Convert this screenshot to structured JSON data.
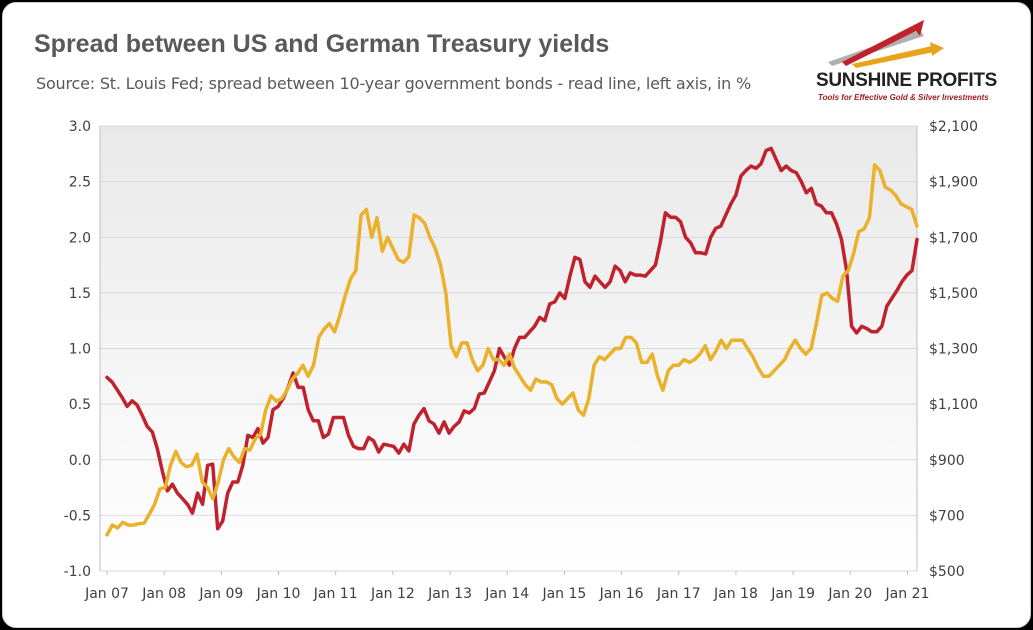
{
  "header": {
    "title": "Spread between US and German Treasury yields",
    "subtitle": "Source: St. Louis Fed; spread between 10-year government bonds - read line, left axis, in %"
  },
  "logo": {
    "name": "SUNSHINE PROFITS",
    "tagline": "Tools for Effective Gold & Silver Investments",
    "colors": {
      "red": "#c0222d",
      "gold": "#e8a419",
      "gray": "#b0b0b0"
    }
  },
  "chart_data": {
    "type": "line",
    "x_start": "Jan 07",
    "x_tick_labels": [
      "Jan 07",
      "Jan 08",
      "Jan 09",
      "Jan 10",
      "Jan 11",
      "Jan 12",
      "Jan 13",
      "Jan 14",
      "Jan 15",
      "Jan 16",
      "Jan 17",
      "Jan 18",
      "Jan 19",
      "Jan 20",
      "Jan 21"
    ],
    "y_left": {
      "ylim": [
        -1.0,
        3.0
      ],
      "ticks": [
        "-1.0",
        "-0.5",
        "0.0",
        "0.5",
        "1.0",
        "1.5",
        "2.0",
        "2.5",
        "3.0"
      ]
    },
    "y_right": {
      "ylim": [
        500,
        2100
      ],
      "ticks": [
        "$500",
        "$700",
        "$900",
        "$1,100",
        "$1,300",
        "$1,500",
        "$1,700",
        "$1,900",
        "$2,100"
      ]
    },
    "grid": true,
    "colors": {
      "spread": "#c0222d",
      "gold": "#eab12a",
      "grid": "#d9d9d9",
      "plot_bg_top": "#e9e9e9",
      "plot_bg_bottom": "#ffffff"
    },
    "series": [
      {
        "axis": "left",
        "values": [
          0.74,
          0.7,
          0.63,
          0.56,
          0.48,
          0.53,
          0.49,
          0.4,
          0.3,
          0.25,
          0.1,
          -0.1,
          -0.28,
          -0.22,
          -0.3,
          -0.35,
          -0.4,
          -0.48,
          -0.3,
          -0.4,
          -0.05,
          -0.04,
          -0.62,
          -0.55,
          -0.3,
          -0.2,
          -0.2,
          -0.05,
          0.22,
          0.2,
          0.28,
          0.15,
          0.2,
          0.45,
          0.48,
          0.55,
          0.65,
          0.78,
          0.65,
          0.65,
          0.45,
          0.35,
          0.35,
          0.2,
          0.23,
          0.38,
          0.38,
          0.38,
          0.22,
          0.12,
          0.1,
          0.1,
          0.2,
          0.17,
          0.07,
          0.14,
          0.13,
          0.12,
          0.06,
          0.14,
          0.08,
          0.32,
          0.4,
          0.46,
          0.35,
          0.32,
          0.24,
          0.34,
          0.24,
          0.3,
          0.34,
          0.44,
          0.42,
          0.46,
          0.59,
          0.6,
          0.7,
          0.8,
          1.0,
          0.92,
          0.85,
          1.0,
          1.1,
          1.1,
          1.15,
          1.2,
          1.28,
          1.25,
          1.4,
          1.42,
          1.5,
          1.45,
          1.65,
          1.82,
          1.8,
          1.6,
          1.55,
          1.65,
          1.6,
          1.55,
          1.6,
          1.74,
          1.7,
          1.6,
          1.68,
          1.66,
          1.66,
          1.65,
          1.7,
          1.75,
          1.96,
          2.22,
          2.18,
          2.18,
          2.14,
          2.0,
          1.95,
          1.86,
          1.86,
          1.85,
          2.0,
          2.08,
          2.1,
          2.2,
          2.3,
          2.38,
          2.55,
          2.6,
          2.64,
          2.62,
          2.66,
          2.78,
          2.8,
          2.7,
          2.6,
          2.64,
          2.6,
          2.58,
          2.5,
          2.4,
          2.44,
          2.3,
          2.28,
          2.22,
          2.22,
          2.12,
          1.98,
          1.7,
          1.2,
          1.14,
          1.2,
          1.18,
          1.15,
          1.15,
          1.2,
          1.38,
          1.45,
          1.52,
          1.6,
          1.66,
          1.7,
          1.98
        ]
      },
      {
        "axis": "right",
        "values": [
          630,
          665,
          655,
          675,
          665,
          665,
          670,
          672,
          705,
          740,
          795,
          800,
          880,
          930,
          890,
          875,
          880,
          920,
          820,
          800,
          760,
          820,
          900,
          940,
          910,
          890,
          940,
          935,
          975,
          990,
          1080,
          1130,
          1110,
          1120,
          1150,
          1190,
          1210,
          1240,
          1200,
          1240,
          1340,
          1370,
          1390,
          1360,
          1420,
          1490,
          1550,
          1580,
          1780,
          1800,
          1700,
          1770,
          1650,
          1700,
          1660,
          1620,
          1610,
          1630,
          1780,
          1770,
          1750,
          1700,
          1660,
          1600,
          1500,
          1310,
          1270,
          1320,
          1320,
          1260,
          1220,
          1240,
          1300,
          1260,
          1260,
          1240,
          1280,
          1230,
          1200,
          1170,
          1150,
          1190,
          1180,
          1180,
          1170,
          1120,
          1100,
          1120,
          1140,
          1080,
          1060,
          1120,
          1240,
          1270,
          1260,
          1280,
          1300,
          1300,
          1340,
          1340,
          1320,
          1250,
          1250,
          1280,
          1200,
          1150,
          1220,
          1240,
          1240,
          1260,
          1250,
          1260,
          1280,
          1310,
          1260,
          1290,
          1330,
          1300,
          1330,
          1330,
          1330,
          1300,
          1270,
          1230,
          1200,
          1200,
          1220,
          1240,
          1260,
          1300,
          1330,
          1300,
          1280,
          1300,
          1390,
          1490,
          1500,
          1480,
          1470,
          1560,
          1580,
          1640,
          1720,
          1730,
          1770,
          1960,
          1940,
          1880,
          1870,
          1850,
          1820,
          1810,
          1800,
          1740
        ]
      }
    ]
  }
}
